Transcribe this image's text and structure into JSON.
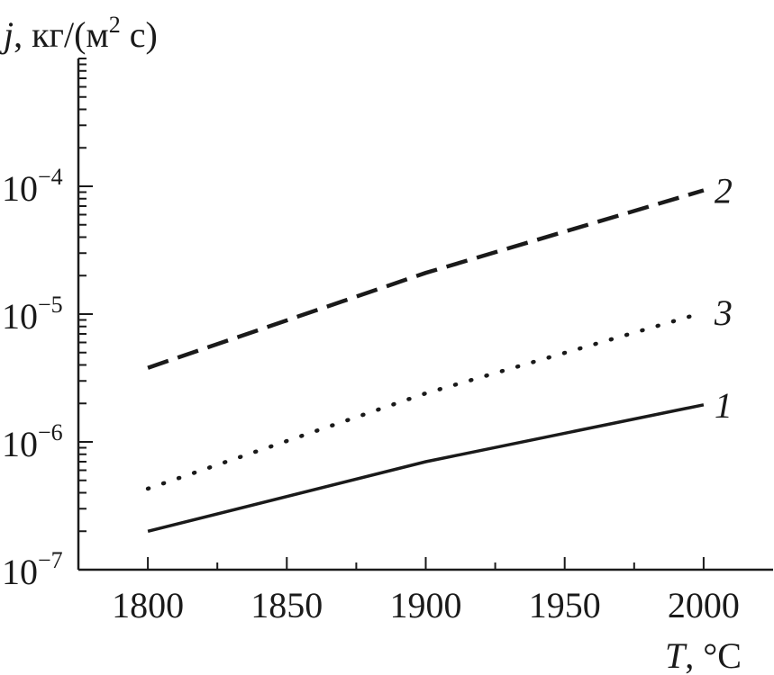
{
  "chart_data": {
    "type": "line",
    "title": "",
    "ylabel": {
      "var": "j",
      "sep": ",",
      "unit_pre": "кг/(м",
      "unit_sup": "2",
      "unit_post": " с)"
    },
    "xlabel": {
      "var": "T",
      "unit": ", °C"
    },
    "xlim": [
      1775,
      2025
    ],
    "ylim_log10": [
      -7,
      -3
    ],
    "y_scale": "log",
    "x_ticks": [
      1800,
      1850,
      1900,
      1950,
      2000
    ],
    "x_tick_labels": [
      "1800",
      "1850",
      "1900",
      "1950",
      "2000"
    ],
    "y_ticks_log10": [
      -7,
      -6,
      -5,
      -4
    ],
    "y_tick_labels": [
      {
        "base": "10",
        "exp": "−7"
      },
      {
        "base": "10",
        "exp": "−6"
      },
      {
        "base": "10",
        "exp": "−5"
      },
      {
        "base": "10",
        "exp": "−4"
      }
    ],
    "series": [
      {
        "name": "1",
        "style": "solid",
        "x": [
          1800,
          1900,
          2000
        ],
        "y": [
          2e-07,
          7e-07,
          1.95e-06
        ]
      },
      {
        "name": "2",
        "style": "dashed",
        "x": [
          1800,
          1900,
          2000
        ],
        "y": [
          3.8e-06,
          2.1e-05,
          9.3e-05
        ]
      },
      {
        "name": "3",
        "style": "dotted",
        "x": [
          1800,
          1900,
          2000
        ],
        "y": [
          4.3e-07,
          2.4e-06,
          1.03e-05
        ]
      }
    ],
    "grid": false,
    "color": "#1a1a1a"
  }
}
